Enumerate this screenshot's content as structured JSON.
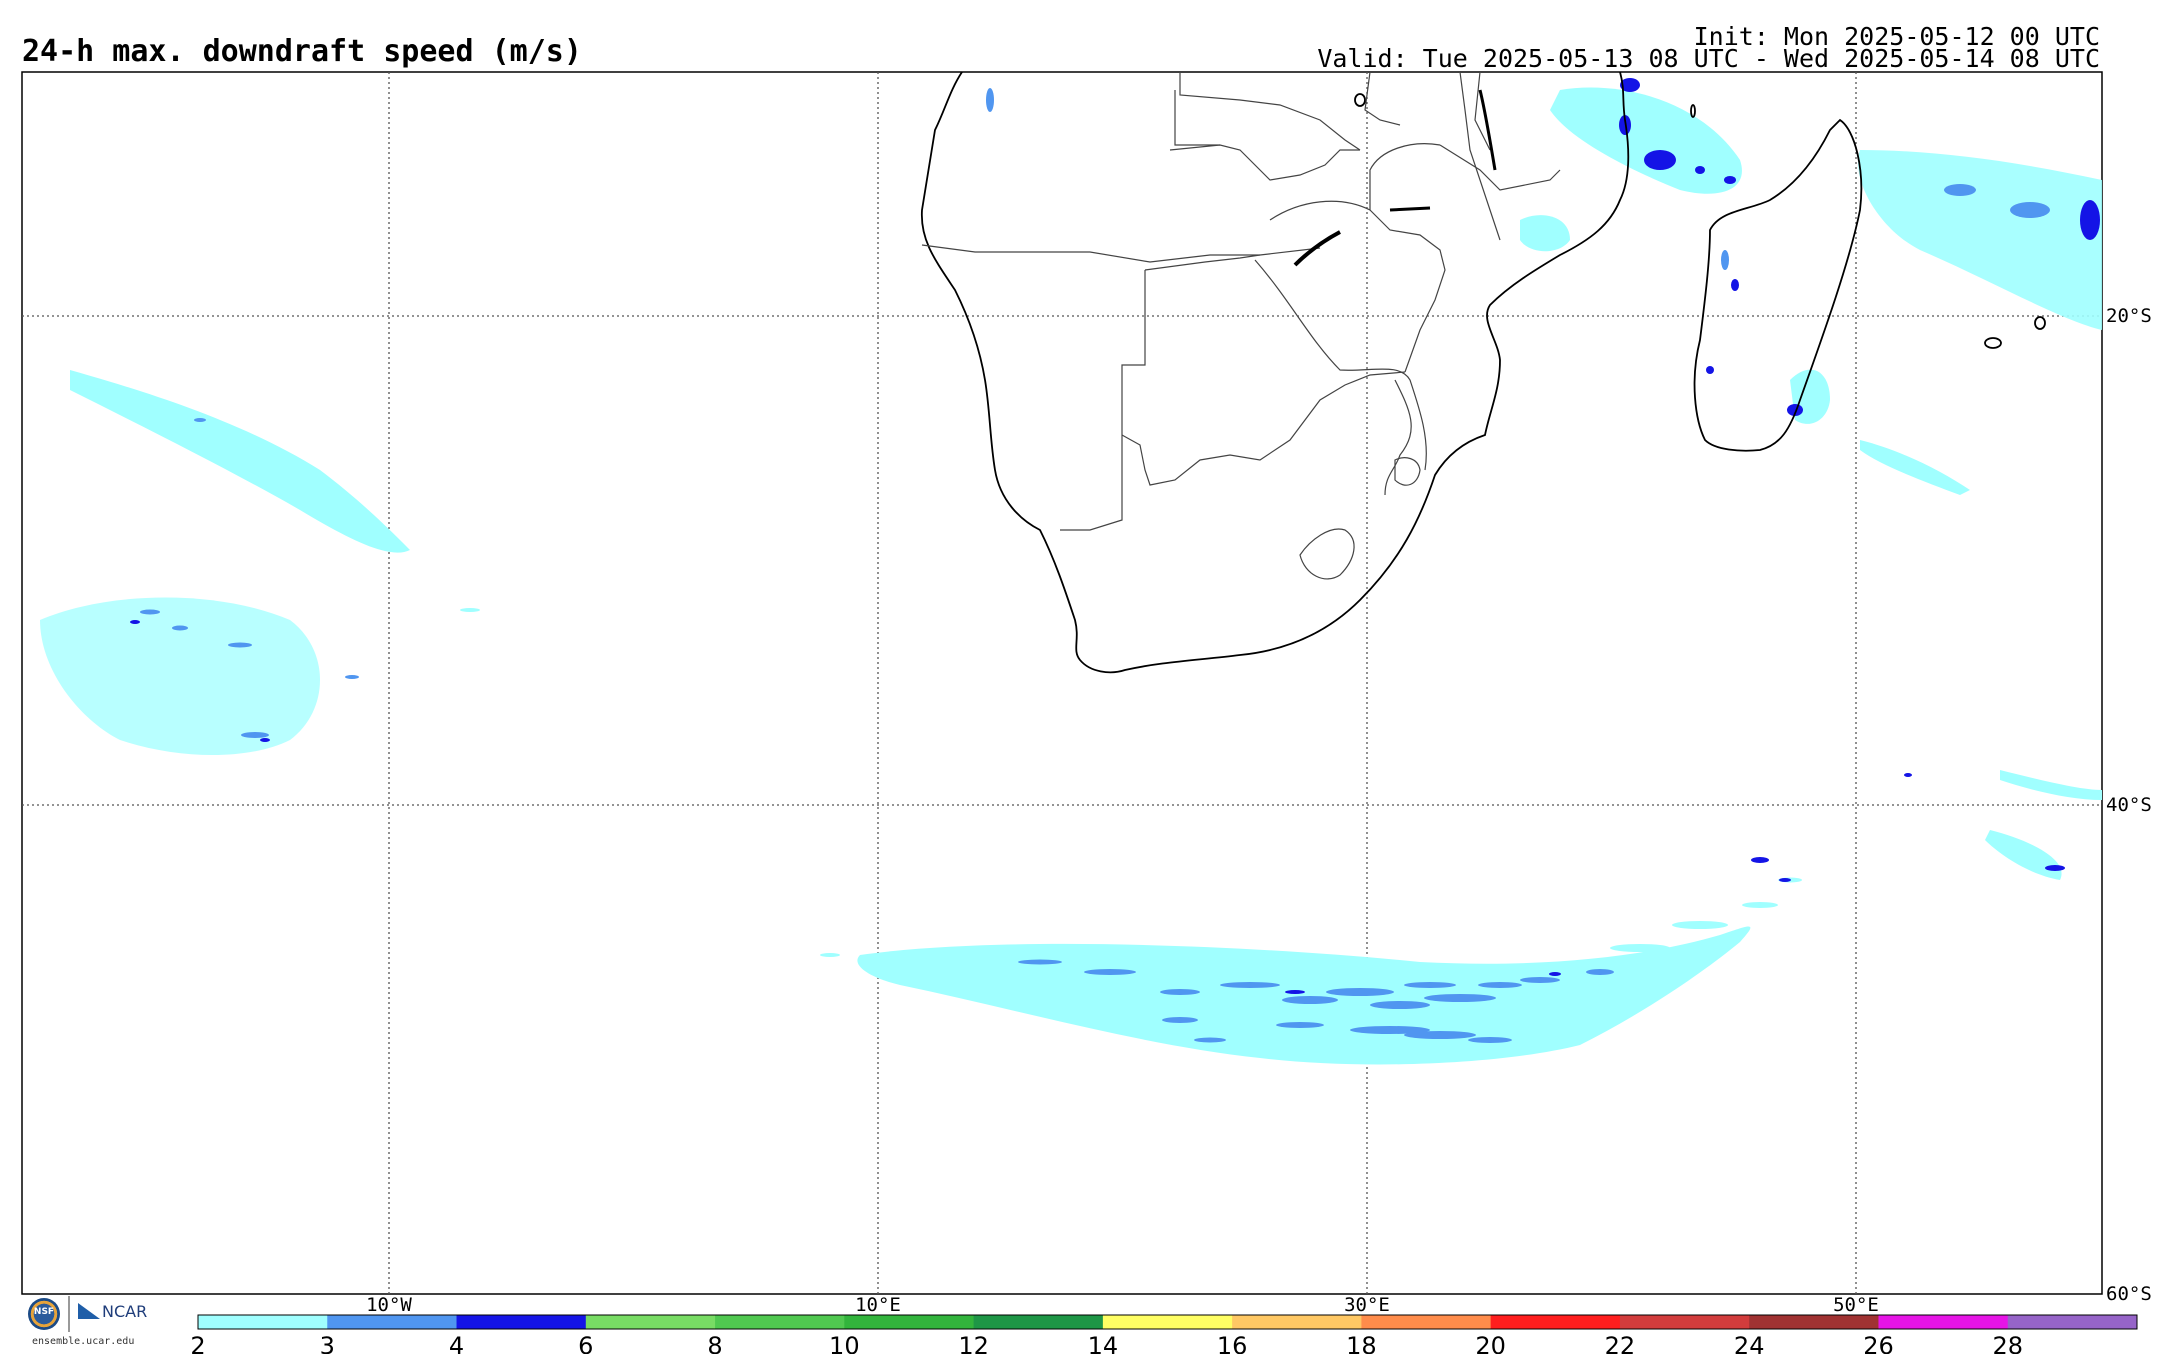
{
  "header": {
    "title": "24-h max. downdraft speed (m/s)",
    "init": "Init: Mon 2025-05-12 00 UTC",
    "valid": "Valid: Tue 2025-05-13 08 UTC - Wed 2025-05-14 08 UTC"
  },
  "map": {
    "gridlines": {
      "style": "dotted",
      "visible": true
    },
    "lon_labels": [
      "10°W",
      "10°E",
      "30°E",
      "50°E"
    ],
    "lat_labels": [
      "20°S",
      "40°S",
      "60°S"
    ],
    "features": [
      "coastlines",
      "country borders",
      "lakes"
    ]
  },
  "colorbar": {
    "tick_labels": [
      "2",
      "3",
      "4",
      "6",
      "8",
      "10",
      "12",
      "14",
      "16",
      "18",
      "20",
      "22",
      "24",
      "26",
      "28"
    ],
    "colors": [
      "#a0ffff",
      "#5096f0",
      "#1414e6",
      "#78dc64",
      "#50c850",
      "#32b43c",
      "#1e9646",
      "#ffff64",
      "#ffc864",
      "#ff8c4b",
      "#ff1e1e",
      "#d23c3c",
      "#a03232",
      "#e614e6",
      "#9664c8"
    ]
  },
  "logos": {
    "nsf": "NSF",
    "ncar": "NCAR",
    "url": "ensemble.ucar.edu"
  }
}
